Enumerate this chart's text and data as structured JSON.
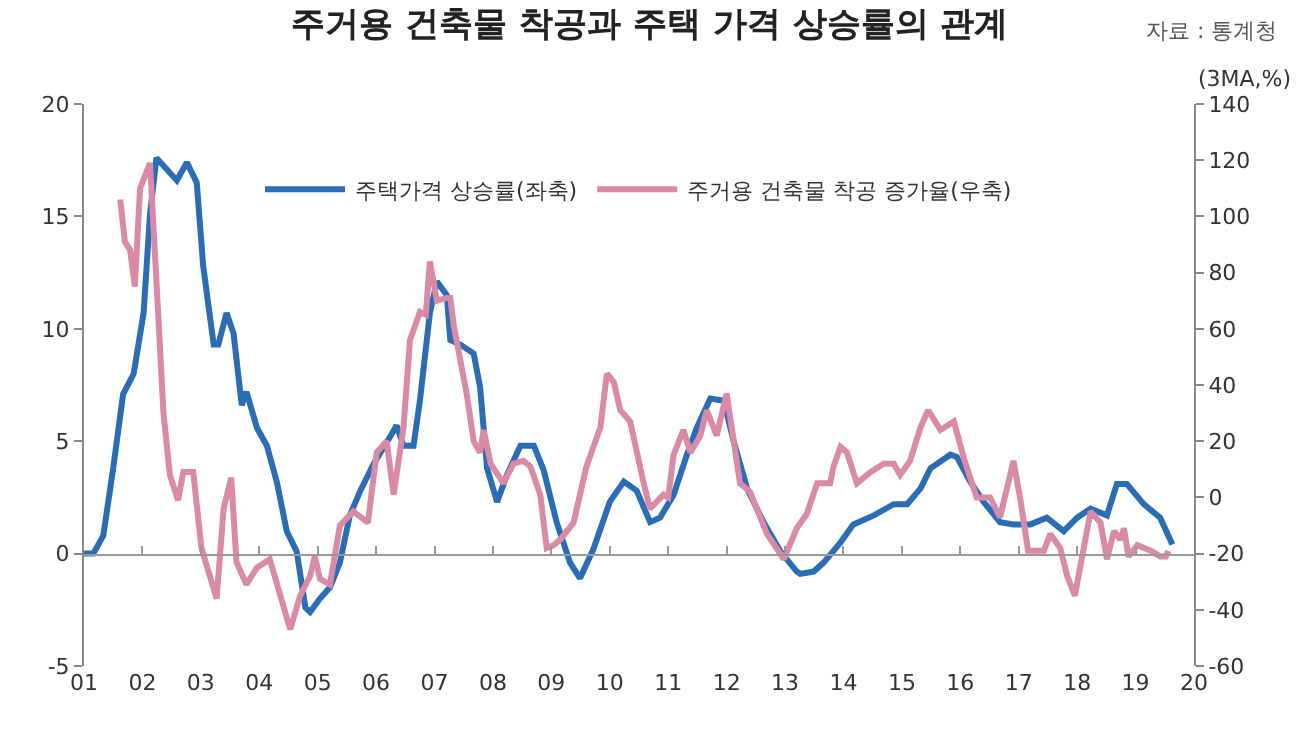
{
  "chart_data": {
    "type": "line",
    "title": "주거용 건축물 착공과 주택 가격 상승률의 관계",
    "y2label": "(3MA,%)",
    "annotations": [
      "자료 : 통계청"
    ],
    "xlim": [
      2001,
      2020
    ],
    "xticks": [
      {
        "value": 2001,
        "label": "01"
      },
      {
        "value": 2002,
        "label": "02"
      },
      {
        "value": 2003,
        "label": "03"
      },
      {
        "value": 2004,
        "label": "04"
      },
      {
        "value": 2005,
        "label": "05"
      },
      {
        "value": 2006,
        "label": "06"
      },
      {
        "value": 2007,
        "label": "07"
      },
      {
        "value": 2008,
        "label": "08"
      },
      {
        "value": 2009,
        "label": "09"
      },
      {
        "value": 2010,
        "label": "10"
      },
      {
        "value": 2011,
        "label": "11"
      },
      {
        "value": 2012,
        "label": "12"
      },
      {
        "value": 2013,
        "label": "13"
      },
      {
        "value": 2014,
        "label": "14"
      },
      {
        "value": 2015,
        "label": "15"
      },
      {
        "value": 2016,
        "label": "16"
      },
      {
        "value": 2017,
        "label": "17"
      },
      {
        "value": 2018,
        "label": "18"
      },
      {
        "value": 2019,
        "label": "19"
      },
      {
        "value": 2020,
        "label": "20"
      }
    ],
    "ylim": [
      -5,
      20
    ],
    "yticks": [
      -5,
      0,
      5,
      10,
      15,
      20
    ],
    "y2lim": [
      -60,
      140
    ],
    "y2ticks": [
      -60,
      -40,
      -20,
      0,
      20,
      40,
      60,
      80,
      100,
      120,
      140
    ],
    "legend": "top",
    "marker": "none",
    "line_style": "solid",
    "series": [
      {
        "name": "주택가격 상승률(좌축)",
        "color": "#2a6db5",
        "x": [
          2001.0,
          2001.16,
          2001.33,
          2001.5,
          2001.67,
          2001.85,
          2002.02,
          2002.13,
          2002.24,
          2002.59,
          2002.76,
          2002.93,
          2003.04,
          2003.22,
          2003.3,
          2003.44,
          2003.56,
          2003.7,
          2003.78,
          2003.96,
          2004.13,
          2004.3,
          2004.47,
          2004.64,
          2004.79,
          2004.87,
          2005.04,
          2005.21,
          2005.38,
          2005.55,
          2005.73,
          2005.96,
          2006.24,
          2006.35,
          2006.47,
          2006.64,
          2006.75,
          2006.92,
          2007.04,
          2007.21,
          2007.27,
          2007.44,
          2007.67,
          2007.78,
          2007.9,
          2008.07,
          2008.24,
          2008.47,
          2008.7,
          2008.87,
          2009.09,
          2009.32,
          2009.49,
          2009.72,
          2010.0,
          2010.24,
          2010.46,
          2010.69,
          2010.86,
          2011.09,
          2011.32,
          2011.49,
          2011.72,
          2011.95,
          2012.12,
          2012.35,
          2012.63,
          2012.92,
          2013.2,
          2013.26,
          2013.49,
          2013.66,
          2013.95,
          2014.17,
          2014.52,
          2014.86,
          2015.09,
          2015.32,
          2015.49,
          2015.83,
          2015.94,
          2016.17,
          2016.4,
          2016.68,
          2016.91,
          2017.2,
          2017.48,
          2017.77,
          2018.0,
          2018.23,
          2018.51,
          2018.68,
          2018.85,
          2019.14,
          2019.42,
          2019.63
        ],
        "values": [
          0,
          0,
          0.8,
          3.8,
          7.1,
          8.0,
          10.7,
          15.1,
          17.6,
          16.6,
          17.4,
          16.5,
          12.8,
          9.3,
          9.3,
          10.7,
          9.8,
          6.6,
          7.2,
          5.6,
          4.8,
          3.2,
          1.0,
          0.1,
          -2.4,
          -2.6,
          -2.0,
          -1.5,
          -0.4,
          1.7,
          2.8,
          4.0,
          5.2,
          5.7,
          4.8,
          4.8,
          6.8,
          10.7,
          12.1,
          11.5,
          9.5,
          9.3,
          8.9,
          7.4,
          3.8,
          2.3,
          3.5,
          4.8,
          4.8,
          3.7,
          1.4,
          -0.4,
          -1.1,
          0.2,
          2.3,
          3.2,
          2.8,
          1.4,
          1.6,
          2.6,
          4.4,
          5.6,
          6.9,
          6.8,
          5.0,
          2.9,
          1.4,
          0.1,
          -0.8,
          -0.9,
          -0.8,
          -0.4,
          0.5,
          1.3,
          1.7,
          2.2,
          2.2,
          2.9,
          3.8,
          4.4,
          4.3,
          3.2,
          2.3,
          1.4,
          1.3,
          1.3,
          1.6,
          1.0,
          1.6,
          2.0,
          1.7,
          3.1,
          3.1,
          2.2,
          1.6,
          0.4
        ]
      },
      {
        "name": "주거용 건축물 착공 증가율(우축)",
        "color": "#d98aa6",
        "axis": "y2",
        "x": [
          2001.62,
          2001.7,
          2001.79,
          2001.87,
          2001.96,
          2002.13,
          2002.24,
          2002.36,
          2002.47,
          2002.61,
          2002.7,
          2002.87,
          2003.01,
          2003.27,
          2003.39,
          2003.52,
          2003.61,
          2003.78,
          2003.96,
          2004.18,
          2004.53,
          2004.7,
          2004.87,
          2004.95,
          2005.04,
          2005.21,
          2005.38,
          2005.61,
          2005.86,
          2006.01,
          2006.18,
          2006.3,
          2006.47,
          2006.58,
          2006.75,
          2006.85,
          2006.92,
          2007.04,
          2007.21,
          2007.27,
          2007.33,
          2007.55,
          2007.67,
          2007.78,
          2007.84,
          2007.96,
          2008.18,
          2008.35,
          2008.52,
          2008.64,
          2008.81,
          2008.92,
          2009.04,
          2009.15,
          2009.38,
          2009.6,
          2009.84,
          2009.95,
          2010.07,
          2010.18,
          2010.35,
          2010.58,
          2010.69,
          2010.92,
          2011.0,
          2011.09,
          2011.26,
          2011.38,
          2011.55,
          2011.66,
          2011.83,
          2012.0,
          2012.23,
          2012.4,
          2012.69,
          2012.98,
          2013.2,
          2013.37,
          2013.55,
          2013.77,
          2013.83,
          2013.95,
          2014.06,
          2014.23,
          2014.46,
          2014.69,
          2014.86,
          2014.97,
          2015.14,
          2015.32,
          2015.45,
          2015.66,
          2015.89,
          2016.06,
          2016.28,
          2016.51,
          2016.68,
          2016.91,
          2017.03,
          2017.16,
          2017.43,
          2017.54,
          2017.71,
          2017.83,
          2017.96,
          2018.23,
          2018.4,
          2018.51,
          2018.63,
          2018.74,
          2018.8,
          2018.88,
          2019.03,
          2019.26,
          2019.42,
          2019.52,
          2019.56
        ],
        "values": [
          106,
          91,
          88,
          75,
          110,
          119,
          77,
          30,
          8,
          -1,
          9,
          9,
          -18,
          -36,
          -4,
          7,
          -23,
          -31,
          -25,
          -22,
          -47,
          -35,
          -28,
          -21,
          -29,
          -31,
          -10,
          -5,
          -9,
          16,
          20,
          1,
          25,
          56,
          66,
          65,
          84,
          70,
          71,
          71,
          61,
          37,
          20,
          16,
          24,
          12,
          5,
          12,
          13,
          11,
          1,
          -18,
          -17,
          -15,
          -9,
          11,
          25,
          44,
          41,
          31,
          27,
          5,
          -4,
          1,
          0,
          15,
          24,
          16,
          22,
          31,
          22,
          37,
          5,
          2,
          -13,
          -22,
          -11,
          -6,
          5,
          5,
          11,
          18,
          16,
          5,
          9,
          12,
          12,
          8,
          13,
          25,
          31,
          24,
          27,
          14,
          0,
          0,
          -7,
          13,
          -1,
          -19,
          -19,
          -13,
          -18,
          -28,
          -35,
          -5,
          -9,
          -22,
          -12,
          -15,
          -11,
          -21,
          -17,
          -19,
          -21,
          -21,
          -19
        ]
      }
    ]
  }
}
